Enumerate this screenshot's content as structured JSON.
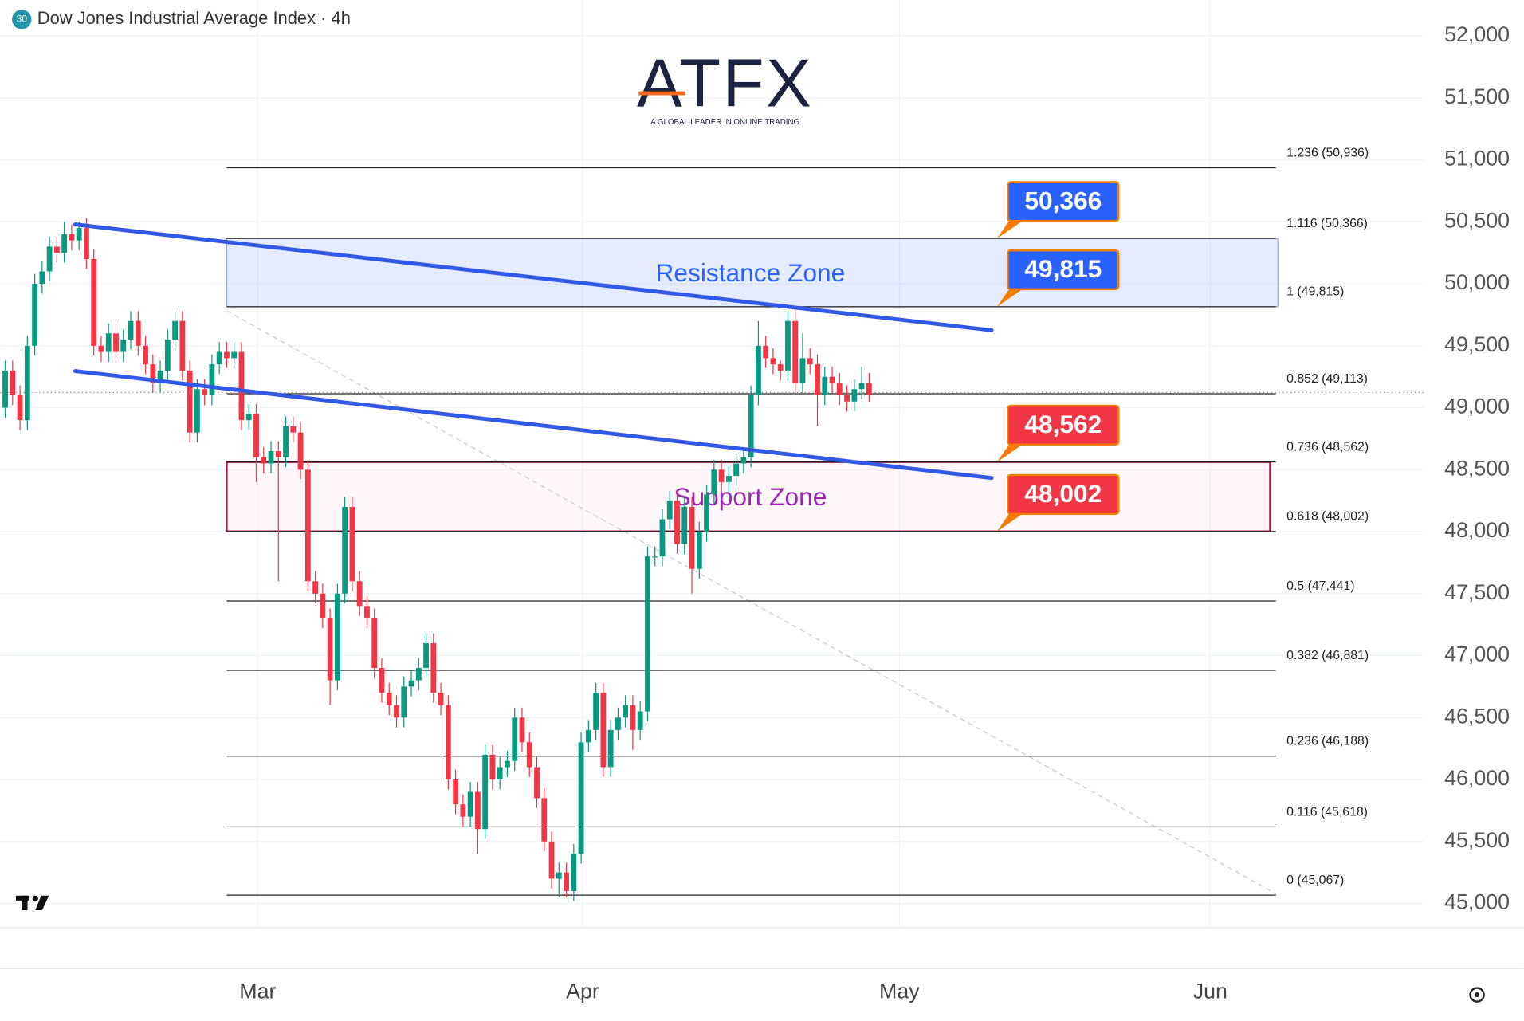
{
  "chart_data": {
    "type": "candlestick",
    "title": "Dow Jones Industrial Average Index · 4h",
    "badge": "30",
    "logo": {
      "name": "ATFX",
      "tagline": "A GLOBAL LEADER IN ONLINE TRADING"
    },
    "up_color": "#089981",
    "down_color": "#f23645",
    "xlim": [
      -0.66,
      192.1
    ],
    "xticks": [
      {
        "value": 34.2,
        "label": "Mar"
      },
      {
        "value": 78.2,
        "label": "Apr"
      },
      {
        "value": 121.1,
        "label": "May"
      },
      {
        "value": 163.2,
        "label": "Jun"
      }
    ],
    "ylim": [
      44804,
      52290
    ],
    "yticks": [
      {
        "value": 45000,
        "label": "45,000"
      },
      {
        "value": 45500,
        "label": "45,500"
      },
      {
        "value": 46000,
        "label": "46,000"
      },
      {
        "value": 46500,
        "label": "46,500"
      },
      {
        "value": 47000,
        "label": "47,000"
      },
      {
        "value": 47500,
        "label": "47,500"
      },
      {
        "value": 48000,
        "label": "48,000"
      },
      {
        "value": 48500,
        "label": "48,500"
      },
      {
        "value": 49000,
        "label": "49,000"
      },
      {
        "value": 49500,
        "label": "49,500"
      },
      {
        "value": 50000,
        "label": "50,000"
      },
      {
        "value": 50500,
        "label": "50,500"
      },
      {
        "value": 51000,
        "label": "51,000"
      },
      {
        "value": 51500,
        "label": "51,500"
      },
      {
        "value": 52000,
        "label": "52,000"
      }
    ],
    "grid": true,
    "open": [
      49000,
      49300,
      49100,
      48900,
      49500,
      50000,
      50100,
      50300,
      50250,
      50400,
      50350,
      50450,
      50200,
      49500,
      49450,
      49600,
      49450,
      49550,
      49700,
      49500,
      49350,
      49200,
      49300,
      49550,
      49700,
      49300,
      48800,
      49150,
      49100,
      49350,
      49450,
      49400,
      49450,
      48900,
      48950,
      48600,
      48550,
      48650,
      48600,
      48850,
      48800,
      48500,
      47600,
      47500,
      47300,
      46800,
      47500,
      48200,
      47600,
      47400,
      47300,
      46900,
      46700,
      46600,
      46500,
      46750,
      46800,
      46900,
      47100,
      46700,
      46600,
      46000,
      45800,
      45700,
      45900,
      45600,
      46200,
      46000,
      46100,
      46150,
      46500,
      46300,
      46100,
      45850,
      45500,
      45200,
      45250,
      45100,
      45400,
      46300,
      46400,
      46700,
      46100,
      46400,
      46500,
      46600,
      46400,
      46550,
      47800,
      47800,
      48100,
      48250,
      47900,
      48200,
      47700,
      48000,
      48300,
      48500,
      48400,
      48450,
      48550,
      48600,
      49100,
      49500,
      49400,
      49350,
      49300,
      49700,
      49200,
      49400,
      49350,
      49100,
      49250,
      49200,
      49100,
      49050,
      49150,
      49200
    ],
    "high": [
      49380,
      49380,
      49180,
      49580,
      50080,
      50180,
      50380,
      50380,
      50500,
      50480,
      50500,
      50530,
      50280,
      49580,
      49680,
      49680,
      49630,
      49780,
      49780,
      49580,
      49430,
      49380,
      49630,
      49780,
      49780,
      49380,
      49230,
      49230,
      49430,
      49530,
      49530,
      49530,
      49530,
      49030,
      49030,
      48680,
      48730,
      48730,
      48930,
      48930,
      48880,
      48580,
      47680,
      47580,
      47380,
      47580,
      48280,
      48280,
      47680,
      47480,
      47380,
      46980,
      46780,
      46680,
      46830,
      46880,
      46980,
      47180,
      47180,
      46780,
      46680,
      46080,
      45880,
      45980,
      45980,
      46280,
      46280,
      46180,
      46230,
      46580,
      46580,
      46380,
      46180,
      45930,
      45580,
      45330,
      45330,
      45480,
      46380,
      46480,
      46780,
      46780,
      46480,
      46580,
      46680,
      46680,
      46630,
      47880,
      47880,
      48180,
      48330,
      48330,
      48280,
      48280,
      48080,
      48380,
      48580,
      48580,
      48530,
      48630,
      48680,
      49180,
      49700,
      49580,
      49480,
      49380,
      49780,
      49780,
      49600,
      49480,
      49430,
      49330,
      49330,
      49280,
      49180,
      49230,
      49330,
      49280
    ],
    "low": [
      48920,
      49020,
      48820,
      48820,
      49420,
      49920,
      50020,
      50170,
      50170,
      50270,
      50270,
      50120,
      49420,
      49370,
      49370,
      49370,
      49370,
      49470,
      49420,
      49270,
      49120,
      49120,
      49220,
      49470,
      49220,
      48720,
      48720,
      49020,
      49020,
      49270,
      49320,
      49320,
      48820,
      48820,
      48400,
      48470,
      48470,
      47600,
      48520,
      48720,
      48420,
      47520,
      47420,
      47220,
      46600,
      46720,
      47420,
      47520,
      47320,
      47220,
      46820,
      46620,
      46520,
      46420,
      46420,
      46670,
      46720,
      46820,
      46620,
      46520,
      45920,
      45720,
      45620,
      45620,
      45400,
      45520,
      45920,
      45920,
      46020,
      46070,
      46220,
      46020,
      45770,
      45420,
      45120,
      45050,
      45050,
      45020,
      45320,
      46220,
      46320,
      46020,
      46020,
      46320,
      46420,
      46240,
      46320,
      46470,
      47720,
      47720,
      48020,
      47820,
      47820,
      47500,
      47620,
      47920,
      48220,
      48320,
      48320,
      48370,
      48470,
      48520,
      49020,
      49320,
      49270,
      49220,
      49220,
      49120,
      49120,
      49270,
      48850,
      49020,
      49120,
      49020,
      48970,
      48970,
      49070,
      49050
    ],
    "close": [
      49300,
      49100,
      48900,
      49500,
      50000,
      50100,
      50300,
      50250,
      50400,
      50350,
      50450,
      50200,
      49500,
      49450,
      49600,
      49450,
      49550,
      49700,
      49500,
      49350,
      49200,
      49300,
      49550,
      49700,
      49300,
      48800,
      49150,
      49100,
      49350,
      49450,
      49400,
      49450,
      48900,
      48950,
      48600,
      48550,
      48650,
      48600,
      48850,
      48800,
      48500,
      47600,
      47500,
      47300,
      46800,
      47500,
      48200,
      47600,
      47400,
      47300,
      46900,
      46700,
      46600,
      46500,
      46750,
      46800,
      46900,
      47100,
      46700,
      46600,
      46000,
      45800,
      45700,
      45900,
      45600,
      46200,
      46000,
      46100,
      46150,
      46500,
      46300,
      46100,
      45850,
      45500,
      45200,
      45250,
      45100,
      45400,
      46300,
      46400,
      46700,
      46100,
      46400,
      46500,
      46600,
      46400,
      46550,
      47800,
      47800,
      48100,
      48250,
      47900,
      48200,
      47700,
      48000,
      48300,
      48500,
      48400,
      48450,
      48550,
      48600,
      49100,
      49500,
      49400,
      49350,
      49300,
      49700,
      49200,
      49400,
      49350,
      49100,
      49250,
      49200,
      49100,
      49050,
      49150,
      49200,
      49100
    ],
    "fib_levels": [
      {
        "value": 50936,
        "label": "1.236 (50,936)"
      },
      {
        "value": 50366,
        "label": "1.116 (50,366)"
      },
      {
        "value": 49815,
        "label": "1 (49,815)"
      },
      {
        "value": 49113,
        "label": "0.852 (49,113)"
      },
      {
        "value": 48562,
        "label": "0.736 (48,562)"
      },
      {
        "value": 48002,
        "label": "0.618 (48,002)"
      },
      {
        "value": 47441,
        "label": "0.5 (47,441)"
      },
      {
        "value": 46881,
        "label": "0.382 (46,881)"
      },
      {
        "value": 46188,
        "label": "0.236 (46,188)"
      },
      {
        "value": 45618,
        "label": "0.116 (45,618)"
      },
      {
        "value": 45067,
        "label": "0 (45,067)"
      }
    ],
    "zones": [
      {
        "label": "Resistance Zone",
        "from": 49815,
        "to": 50366,
        "color": "#2962ff"
      },
      {
        "label": "Support Zone",
        "from": 48002,
        "to": 48562,
        "color": "#9c27b0"
      }
    ],
    "callouts": [
      {
        "value": 50366,
        "label": "50,366",
        "color": "#2962ff"
      },
      {
        "value": 49815,
        "label": "49,815",
        "color": "#2962ff"
      },
      {
        "value": 48562,
        "label": "48,562",
        "color": "#f23645"
      },
      {
        "value": 48002,
        "label": "48,002",
        "color": "#f23645"
      }
    ],
    "trendlines": [
      {
        "x": [
          9.47,
          133.6
        ],
        "y": [
          50479,
          49625
        ],
        "color": "#3159e6"
      },
      {
        "x": [
          9.47,
          133.6
        ],
        "y": [
          49296,
          48433
        ],
        "color": "#3159e6"
      }
    ]
  }
}
